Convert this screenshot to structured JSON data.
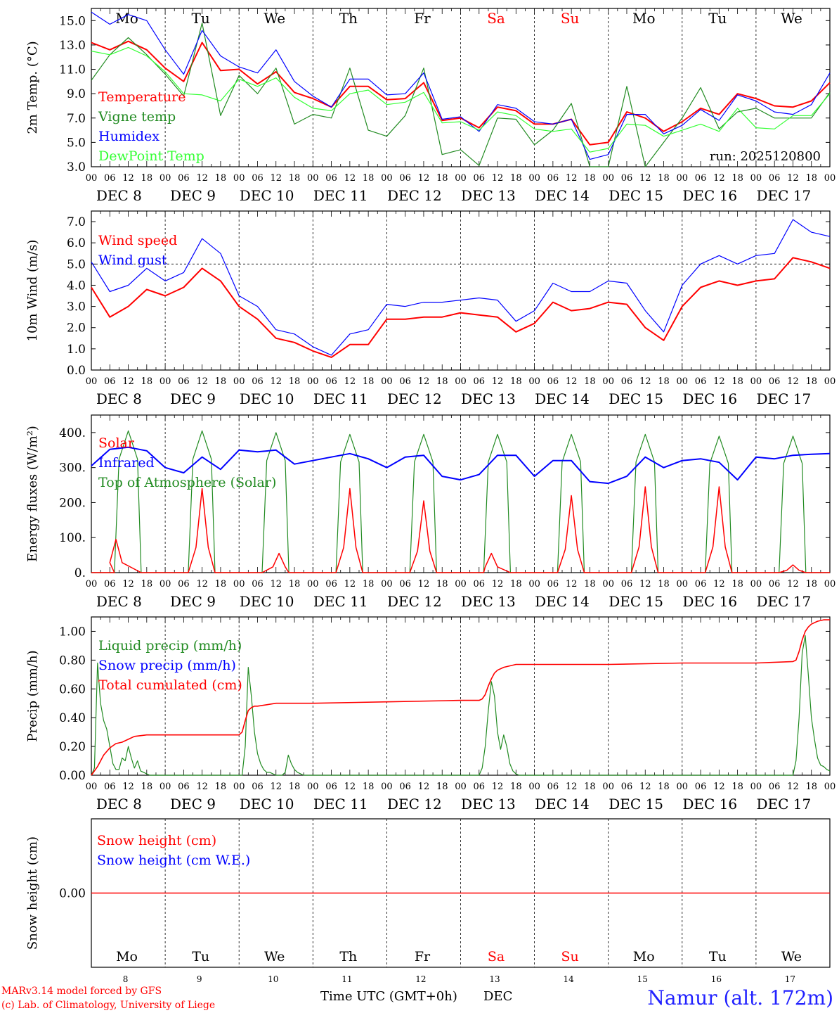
{
  "station": "Namur (alt. 172m)",
  "footer": {
    "credit_line1": "MARv3.14 model forced by GFS",
    "credit_line2": "(c) Lab. of Climatology, University of Liege",
    "xaxis_title": "Time UTC (GMT+0h)",
    "xaxis_month": "DEC"
  },
  "colors": {
    "red": "#ff0000",
    "green": "#228b22",
    "blue": "#0000ff",
    "lightgreen": "#33ff33",
    "weekend": "#ff0000"
  },
  "days": {
    "weekdays": [
      "Mo",
      "Tu",
      "We",
      "Th",
      "Fr",
      "Sa",
      "Su",
      "Mo",
      "Tu",
      "We"
    ],
    "weekend_flags": [
      false,
      false,
      false,
      false,
      false,
      true,
      true,
      false,
      false,
      false
    ],
    "dates": [
      "DEC  8",
      "DEC  9",
      "DEC 10",
      "DEC 11",
      "DEC 12",
      "DEC 13",
      "DEC 14",
      "DEC 15",
      "DEC 16",
      "DEC 17"
    ],
    "day_numbers": [
      "8",
      "9",
      "10",
      "11",
      "12",
      "13",
      "14",
      "15",
      "16",
      "17"
    ],
    "hour_labels": [
      "00",
      "06",
      "12",
      "18"
    ],
    "final_hour_label": "00"
  },
  "chart_data": [
    {
      "id": "temperature",
      "type": "line",
      "ylabel": "2m Temp. (°C)",
      "ylim": [
        3.0,
        16.0
      ],
      "yticks": [
        "3.0",
        "5.0",
        "7.0",
        "9.0",
        "11.0",
        "13.0",
        "15.0"
      ],
      "ytick_values": [
        3,
        5,
        7,
        9,
        11,
        13,
        15
      ],
      "annotation": "run: 2025120800",
      "x_hours": [
        0,
        6,
        12,
        18,
        24,
        30,
        36,
        42,
        48,
        54,
        60,
        66,
        72,
        78,
        84,
        90,
        96,
        102,
        108,
        114,
        120,
        126,
        132,
        138,
        144,
        150,
        156,
        162,
        168,
        174,
        180,
        186,
        192,
        198,
        204,
        210,
        216,
        222,
        228,
        234,
        240
      ],
      "series": [
        {
          "name": "Temperature",
          "color": "red",
          "values": [
            13.2,
            12.6,
            13.3,
            12.6,
            11.1,
            10.0,
            13.2,
            10.9,
            11.0,
            9.8,
            10.8,
            9.1,
            8.6,
            7.9,
            9.6,
            9.6,
            8.5,
            8.6,
            9.9,
            6.8,
            7.0,
            6.2,
            7.9,
            7.6,
            6.5,
            6.5,
            6.9,
            4.8,
            5.0,
            7.5,
            7.0,
            5.9,
            6.7,
            7.8,
            7.3,
            9.0,
            8.6,
            8.0,
            7.9,
            8.4,
            9.9
          ]
        },
        {
          "name": "Vigne temp",
          "color": "green",
          "values": [
            10.1,
            12.2,
            13.6,
            12.2,
            10.6,
            8.8,
            14.8,
            7.2,
            10.5,
            9.0,
            11.1,
            6.5,
            7.3,
            7.0,
            11.1,
            6.0,
            5.5,
            7.2,
            11.1,
            4.0,
            4.4,
            3.1,
            7.0,
            6.9,
            4.8,
            6.0,
            8.2,
            2.6,
            3.0,
            9.6,
            2.8,
            5.0,
            7.0,
            9.5,
            6.1,
            7.5,
            7.8,
            7.0,
            7.0,
            7.0,
            9.1
          ]
        },
        {
          "name": "Humidex",
          "color": "blue",
          "values": [
            15.7,
            14.7,
            15.5,
            15.0,
            12.6,
            10.6,
            14.2,
            12.1,
            11.2,
            10.7,
            12.6,
            10.0,
            8.8,
            7.9,
            10.2,
            10.2,
            8.9,
            9.0,
            10.7,
            6.9,
            7.1,
            5.9,
            8.1,
            7.8,
            6.7,
            6.5,
            6.9,
            3.6,
            4.0,
            7.3,
            7.3,
            5.7,
            6.4,
            7.7,
            6.8,
            8.9,
            8.4,
            7.5,
            7.3,
            8.1,
            10.7
          ]
        },
        {
          "name": "DewPoint Temp",
          "color": "lightgreen",
          "values": [
            12.5,
            12.2,
            12.8,
            12.1,
            10.8,
            9.0,
            8.9,
            8.4,
            10.2,
            9.6,
            10.3,
            8.7,
            7.8,
            7.6,
            9.0,
            9.3,
            8.1,
            8.3,
            9.1,
            6.6,
            6.7,
            6.0,
            7.5,
            7.2,
            6.1,
            5.9,
            6.1,
            4.2,
            4.5,
            6.5,
            6.4,
            5.5,
            6.0,
            6.5,
            5.9,
            7.8,
            6.2,
            6.1,
            7.2,
            7.2,
            9.0
          ]
        }
      ]
    },
    {
      "id": "wind",
      "type": "line",
      "ylabel": "10m Wind (m/s)",
      "ylim": [
        0.0,
        7.5
      ],
      "yticks": [
        "0.0",
        "1.0",
        "2.0",
        "3.0",
        "4.0",
        "5.0",
        "6.0",
        "7.0"
      ],
      "ytick_values": [
        0,
        1,
        2,
        3,
        4,
        5,
        6,
        7
      ],
      "reference_line": 5.0,
      "x_hours": [
        0,
        6,
        12,
        18,
        24,
        30,
        36,
        42,
        48,
        54,
        60,
        66,
        72,
        78,
        84,
        90,
        96,
        102,
        108,
        114,
        120,
        126,
        132,
        138,
        144,
        150,
        156,
        162,
        168,
        174,
        180,
        186,
        192,
        198,
        204,
        210,
        216,
        222,
        228,
        234,
        240
      ],
      "series": [
        {
          "name": "Wind speed",
          "color": "red",
          "values": [
            3.9,
            2.5,
            3.0,
            3.8,
            3.5,
            3.9,
            4.8,
            4.2,
            3.0,
            2.4,
            1.5,
            1.3,
            0.9,
            0.6,
            1.2,
            1.2,
            2.4,
            2.4,
            2.5,
            2.5,
            2.7,
            2.6,
            2.5,
            1.8,
            2.2,
            3.2,
            2.8,
            2.9,
            3.2,
            3.1,
            2.0,
            1.4,
            3.0,
            3.9,
            4.2,
            4.0,
            4.2,
            4.3,
            5.3,
            5.1,
            4.8
          ]
        },
        {
          "name": "Wind gust",
          "color": "blue",
          "values": [
            5.1,
            3.7,
            4.0,
            4.8,
            4.2,
            4.6,
            6.2,
            5.5,
            3.5,
            3.0,
            1.9,
            1.7,
            1.1,
            0.7,
            1.7,
            1.9,
            3.1,
            3.0,
            3.2,
            3.2,
            3.3,
            3.4,
            3.3,
            2.3,
            2.8,
            4.1,
            3.7,
            3.7,
            4.2,
            4.1,
            2.8,
            1.8,
            4.0,
            5.0,
            5.4,
            5.0,
            5.4,
            5.5,
            7.1,
            6.5,
            6.3
          ]
        }
      ]
    },
    {
      "id": "energy",
      "type": "line",
      "ylabel": "Energy fluxes (W/m²)",
      "ylim": [
        0,
        450
      ],
      "yticks": [
        "0.",
        "100.",
        "200.",
        "300.",
        "400."
      ],
      "ytick_values": [
        0,
        100,
        200,
        300,
        400
      ],
      "infrared": {
        "name": "Infrared",
        "color": "blue",
        "x_hours": [
          0,
          6,
          12,
          18,
          24,
          30,
          36,
          42,
          48,
          54,
          60,
          66,
          72,
          78,
          84,
          90,
          96,
          102,
          108,
          114,
          120,
          126,
          132,
          138,
          144,
          150,
          156,
          162,
          168,
          174,
          180,
          186,
          192,
          198,
          204,
          210,
          216,
          222,
          228,
          234,
          240
        ],
        "values": [
          305,
          352,
          358,
          348,
          300,
          285,
          330,
          295,
          350,
          345,
          350,
          310,
          320,
          330,
          340,
          325,
          300,
          330,
          335,
          275,
          265,
          280,
          335,
          335,
          275,
          320,
          320,
          260,
          255,
          275,
          330,
          300,
          320,
          325,
          315,
          265,
          330,
          325,
          335,
          338,
          340
        ]
      },
      "diurnal": {
        "sunrise_hour": 7.5,
        "sunset_hour": 16.2,
        "toa_peak_hour": 12.0,
        "toa_peak_values": [
          405,
          405,
          400,
          395,
          395,
          395,
          395,
          395,
          390,
          390
        ],
        "solar_name": "Solar",
        "solar_color": "red",
        "toa_name": "Top of Atmosphere (Solar)",
        "toa_color": "green",
        "solar_peak_hours": [
          8,
          12,
          13,
          12,
          12,
          10,
          12,
          12,
          12,
          12
        ],
        "solar_peak_values": [
          95,
          240,
          55,
          240,
          205,
          55,
          220,
          245,
          245,
          22
        ]
      }
    },
    {
      "id": "precip",
      "type": "line",
      "ylabel": "Precip (mm/h)",
      "ylim": [
        0.0,
        1.1
      ],
      "yticks": [
        "0.00",
        "0.20",
        "0.40",
        "0.60",
        "0.80",
        "1.00"
      ],
      "ytick_values": [
        0,
        0.2,
        0.4,
        0.6,
        0.8,
        1.0
      ],
      "liquid": {
        "name": "Liquid precip (mm/h)",
        "color": "green",
        "x_hours": [
          0,
          1,
          2,
          3,
          4,
          5,
          6,
          7,
          8,
          9,
          10,
          11,
          12,
          13,
          14,
          15,
          16,
          17,
          18,
          19,
          20,
          24,
          48,
          49,
          50,
          51,
          52,
          53,
          54,
          55,
          56,
          57,
          58,
          59,
          60,
          61,
          62,
          63,
          64,
          65,
          66,
          67,
          68,
          69,
          70,
          72,
          96,
          120,
          126,
          127,
          128,
          129,
          130,
          131,
          132,
          133,
          134,
          135,
          136,
          137,
          138,
          139,
          140,
          141,
          142,
          144,
          168,
          216,
          228,
          229,
          230,
          231,
          232,
          233,
          234,
          235,
          236,
          237,
          238,
          239,
          240
        ],
        "values": [
          0.0,
          0.05,
          0.78,
          0.5,
          0.38,
          0.32,
          0.2,
          0.08,
          0.04,
          0.04,
          0.12,
          0.1,
          0.2,
          0.12,
          0.05,
          0.1,
          0.03,
          0.02,
          0.01,
          0.0,
          0.0,
          0.0,
          0.0,
          0.0,
          0.2,
          0.75,
          0.55,
          0.3,
          0.15,
          0.08,
          0.04,
          0.02,
          0.02,
          0.01,
          0.0,
          0.0,
          0.0,
          0.02,
          0.14,
          0.08,
          0.04,
          0.02,
          0.01,
          0.0,
          0.0,
          0.0,
          0.0,
          0.0,
          0.0,
          0.05,
          0.2,
          0.45,
          0.65,
          0.55,
          0.3,
          0.18,
          0.28,
          0.2,
          0.08,
          0.03,
          0.01,
          0.0,
          0.0,
          0.0,
          0.0,
          0.0,
          0.0,
          0.0,
          0.0,
          0.1,
          0.4,
          0.85,
          0.97,
          0.7,
          0.4,
          0.25,
          0.12,
          0.07,
          0.06,
          0.04,
          0.03
        ]
      },
      "snow": {
        "name": "Snow precip (mm/h)",
        "color": "blue"
      },
      "cumulated": {
        "name": "Total cumulated (cm)",
        "color": "red",
        "x_hours": [
          0,
          2,
          4,
          6,
          8,
          10,
          12,
          14,
          18,
          24,
          36,
          48,
          49,
          50,
          51,
          52,
          53,
          54,
          60,
          72,
          96,
          120,
          126,
          127,
          128,
          129,
          130,
          131,
          132,
          134,
          138,
          144,
          168,
          192,
          216,
          228,
          229,
          230,
          231,
          232,
          233,
          234,
          236,
          238,
          240
        ],
        "values": [
          0.0,
          0.06,
          0.14,
          0.19,
          0.22,
          0.23,
          0.25,
          0.27,
          0.28,
          0.28,
          0.28,
          0.28,
          0.3,
          0.38,
          0.45,
          0.47,
          0.48,
          0.48,
          0.5,
          0.5,
          0.51,
          0.52,
          0.52,
          0.53,
          0.56,
          0.62,
          0.67,
          0.71,
          0.73,
          0.75,
          0.77,
          0.77,
          0.77,
          0.78,
          0.78,
          0.79,
          0.8,
          0.86,
          0.94,
          1.0,
          1.03,
          1.05,
          1.07,
          1.08,
          1.08
        ]
      }
    },
    {
      "id": "snow",
      "type": "line",
      "ylabel": "Snow height (cm)",
      "ylim": [
        -1.0,
        1.0
      ],
      "yticks": [
        "0.00"
      ],
      "ytick_values": [
        0
      ],
      "series": [
        {
          "name": "Snow height (cm)",
          "color": "red",
          "x_hours": [
            0,
            240
          ],
          "values": [
            0,
            0
          ]
        },
        {
          "name": "Snow height (cm W.E.)",
          "color": "blue",
          "x_hours": [],
          "values": []
        }
      ]
    }
  ]
}
